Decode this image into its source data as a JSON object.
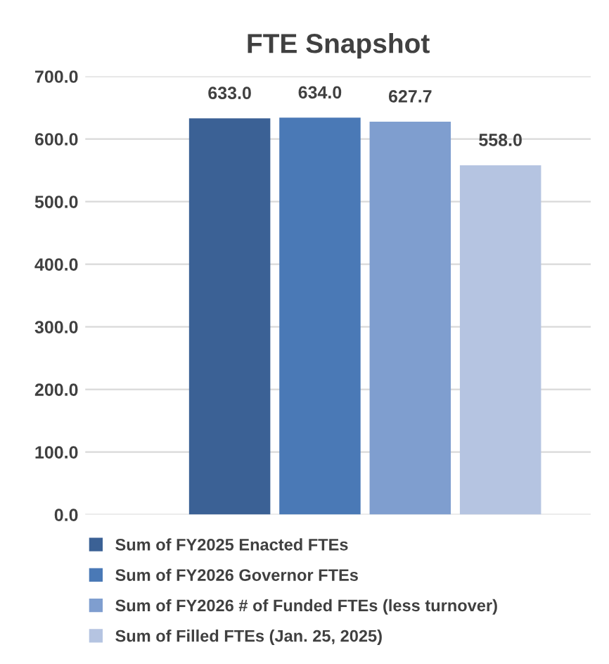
{
  "chart_data": {
    "type": "bar",
    "title": "FTE Snapshot",
    "categories": [
      null
    ],
    "series": [
      {
        "name": "Sum of FY2025 Enacted FTEs",
        "color": "#3b6195",
        "values": [
          633.0
        ],
        "value_labels": [
          "633.0"
        ]
      },
      {
        "name": "Sum of FY2026 Governor FTEs",
        "color": "#4a79b6",
        "values": [
          634.0
        ],
        "value_labels": [
          "634.0"
        ]
      },
      {
        "name": "Sum of FY2026 # of Funded FTEs (less turnover)",
        "color": "#7f9ecf",
        "values": [
          627.7
        ],
        "value_labels": [
          "627.7"
        ]
      },
      {
        "name": "Sum of Filled FTEs (Jan. 25, 2025)",
        "color": "#b5c4e1",
        "values": [
          558.0
        ],
        "value_labels": [
          "558.0"
        ]
      }
    ],
    "ylim": [
      0,
      700
    ],
    "yticks": [
      {
        "value": 0,
        "label": "0.0"
      },
      {
        "value": 100,
        "label": "100.0"
      },
      {
        "value": 200,
        "label": "200.0"
      },
      {
        "value": 300,
        "label": "300.0"
      },
      {
        "value": 400,
        "label": "400.0"
      },
      {
        "value": 500,
        "label": "500.0"
      },
      {
        "value": 600,
        "label": "600.0"
      },
      {
        "value": 700,
        "label": "700.0"
      }
    ],
    "grid": "y",
    "legend": "bottom"
  }
}
